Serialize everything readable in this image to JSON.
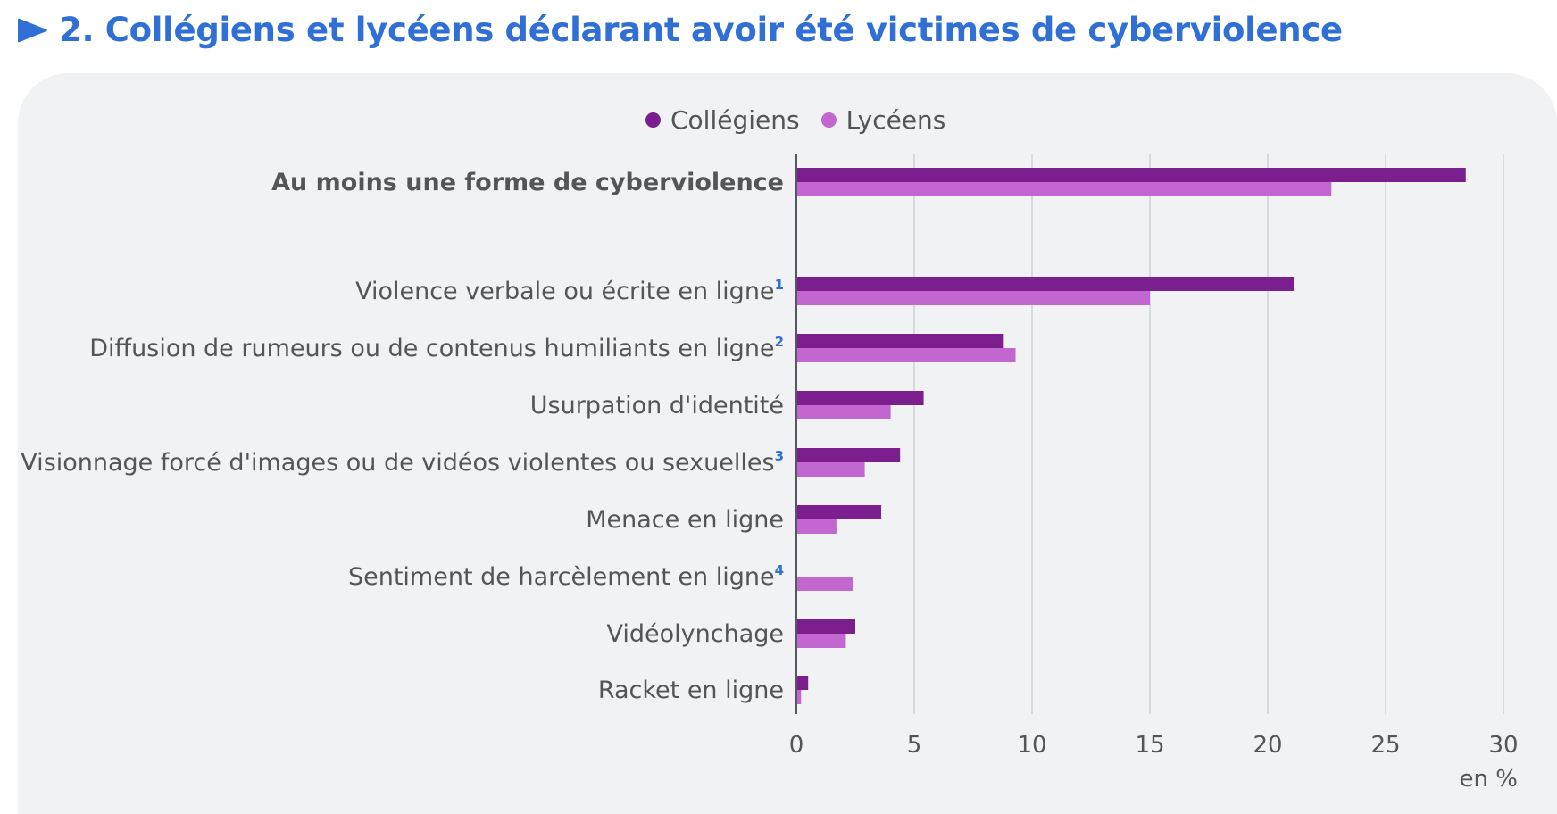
{
  "header": {
    "title": "2. Collégiens et lycéens déclarant avoir été victimes de cyberviolence",
    "accent_color": "#2f6fd6",
    "arrow_icon": "play-arrow-icon"
  },
  "chart_data": {
    "type": "bar",
    "orientation": "horizontal",
    "title": "2. Collégiens et lycéens déclarant avoir été victimes de cyberviolence",
    "xlabel": "en %",
    "xlim": [
      0,
      30
    ],
    "xticks": [
      0,
      5,
      10,
      15,
      20,
      25,
      30
    ],
    "grid": true,
    "legend_position": "top-center",
    "categories": [
      {
        "label": "Au moins une forme de cyberviolence",
        "note": "",
        "bold": true
      },
      {
        "label": "Violence verbale ou écrite en ligne",
        "note": "1",
        "bold": false
      },
      {
        "label": "Diffusion de rumeurs ou de contenus humiliants en ligne",
        "note": "2",
        "bold": false
      },
      {
        "label": "Usurpation d'identité",
        "note": "",
        "bold": false
      },
      {
        "label": "Visionnage forcé d'images ou de vidéos violentes ou sexuelles",
        "note": "3",
        "bold": false
      },
      {
        "label": "Menace en ligne",
        "note": "",
        "bold": false
      },
      {
        "label": "Sentiment de harcèlement en ligne",
        "note": "4",
        "bold": false
      },
      {
        "label": "Vidéolynchage",
        "note": "",
        "bold": false
      },
      {
        "label": "Racket en ligne",
        "note": "",
        "bold": false
      }
    ],
    "series": [
      {
        "name": "Collégiens",
        "color": "#7b1f8e",
        "values": [
          28.4,
          21.1,
          8.8,
          5.4,
          4.4,
          3.6,
          null,
          2.5,
          0.5
        ]
      },
      {
        "name": "Lycéens",
        "color": "#c266d0",
        "values": [
          22.7,
          15.0,
          9.3,
          4.0,
          2.9,
          1.7,
          2.4,
          2.1,
          0.2
        ]
      }
    ]
  }
}
